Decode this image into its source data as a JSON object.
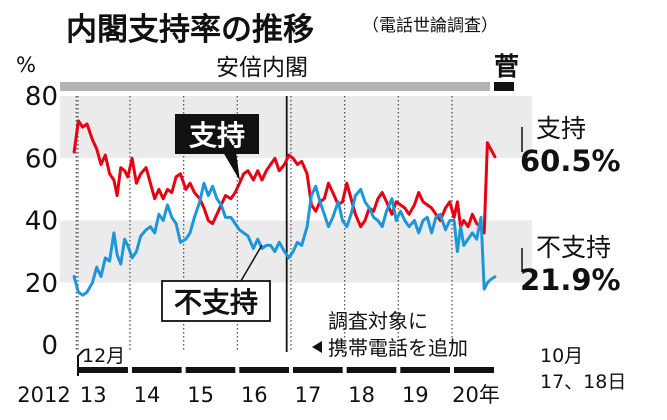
{
  "title": "内閣支持率の推移",
  "subtitle": "（電話世論調査）",
  "colors": {
    "support": "#e60012",
    "nonsupport": "#1f96d8",
    "band_light": "#ebebeb",
    "band_dark": "#b4b4b4",
    "cabinet_bar": "#b4b4b4",
    "ink": "#111111"
  },
  "cabinets": [
    {
      "label": "安倍内閣"
    },
    {
      "label": "菅"
    }
  ],
  "annotation": {
    "line1": "調査対象に",
    "line2": "携帯電話を追加"
  },
  "date_labels": {
    "start_month": "12月",
    "end_month": "10月",
    "end_day": "17、18日"
  },
  "chart_data": {
    "type": "line",
    "y_unit_label": "%",
    "ylim": [
      0,
      80
    ],
    "y_ticks": [
      0,
      20,
      40,
      60,
      80
    ],
    "xlim": [
      2012.92,
      2020.82
    ],
    "x_tick_labels": [
      "2012",
      "13",
      "14",
      "15",
      "16",
      "17",
      "18",
      "19",
      "20年"
    ],
    "grid": false,
    "series": [
      {
        "name": "支持",
        "color_key": "support",
        "last_value_label": "60.5%",
        "x": [
          2012.96,
          2013.04,
          2013.12,
          2013.2,
          2013.3,
          2013.38,
          2013.46,
          2013.54,
          2013.62,
          2013.7,
          2013.76,
          2013.83,
          2013.9,
          2013.96,
          2014.04,
          2014.12,
          2014.2,
          2014.3,
          2014.38,
          2014.46,
          2014.54,
          2014.62,
          2014.7,
          2014.78,
          2014.86,
          2014.94,
          2015.04,
          2015.12,
          2015.2,
          2015.3,
          2015.38,
          2015.46,
          2015.54,
          2015.62,
          2015.7,
          2015.78,
          2015.88,
          2015.96,
          2016.04,
          2016.12,
          2016.2,
          2016.3,
          2016.38,
          2016.46,
          2016.54,
          2016.62,
          2016.7,
          2016.78,
          2016.88,
          2016.96,
          2017.04,
          2017.12,
          2017.2,
          2017.3,
          2017.38,
          2017.46,
          2017.54,
          2017.62,
          2017.7,
          2017.78,
          2017.88,
          2017.96,
          2018.04,
          2018.12,
          2018.2,
          2018.3,
          2018.38,
          2018.46,
          2018.54,
          2018.62,
          2018.7,
          2018.78,
          2018.88,
          2018.96,
          2019.04,
          2019.12,
          2019.2,
          2019.3,
          2019.38,
          2019.46,
          2019.54,
          2019.62,
          2019.7,
          2019.78,
          2019.88,
          2019.96,
          2020.04,
          2020.1,
          2020.16,
          2020.22,
          2020.3,
          2020.38,
          2020.46,
          2020.54,
          2020.6,
          2020.66,
          2020.72,
          2020.8
        ],
        "values": [
          62,
          72,
          70,
          71,
          66,
          63,
          58,
          61,
          55,
          53,
          48,
          57,
          56,
          54,
          60,
          52,
          55,
          57,
          52,
          47,
          50,
          47,
          50,
          49,
          54,
          55,
          50,
          52,
          49,
          47,
          44,
          40,
          39,
          42,
          45,
          48,
          47,
          49,
          52,
          55,
          56,
          53,
          56,
          53,
          56,
          58,
          60,
          56,
          58,
          61,
          60,
          58,
          59,
          55,
          45,
          43,
          46,
          47,
          52,
          49,
          45,
          46,
          52,
          47,
          42,
          38,
          40,
          44,
          43,
          47,
          49,
          46,
          42,
          46,
          45,
          44,
          42,
          45,
          49,
          46,
          45,
          44,
          42,
          40,
          44,
          46,
          41,
          46,
          38,
          40,
          38,
          42,
          39,
          38,
          36,
          65,
          63,
          60.5
        ]
      },
      {
        "name": "不支持",
        "color_key": "nonsupport",
        "last_value_label": "21.9%",
        "x": [
          2012.96,
          2013.04,
          2013.12,
          2013.2,
          2013.3,
          2013.38,
          2013.46,
          2013.54,
          2013.62,
          2013.7,
          2013.76,
          2013.83,
          2013.9,
          2013.96,
          2014.04,
          2014.12,
          2014.2,
          2014.3,
          2014.38,
          2014.46,
          2014.54,
          2014.62,
          2014.7,
          2014.78,
          2014.86,
          2014.94,
          2015.04,
          2015.12,
          2015.2,
          2015.3,
          2015.38,
          2015.46,
          2015.54,
          2015.62,
          2015.7,
          2015.78,
          2015.88,
          2015.96,
          2016.04,
          2016.12,
          2016.2,
          2016.3,
          2016.38,
          2016.46,
          2016.54,
          2016.62,
          2016.7,
          2016.78,
          2016.88,
          2016.96,
          2017.04,
          2017.12,
          2017.2,
          2017.3,
          2017.38,
          2017.46,
          2017.54,
          2017.62,
          2017.7,
          2017.78,
          2017.88,
          2017.96,
          2018.04,
          2018.12,
          2018.2,
          2018.3,
          2018.38,
          2018.46,
          2018.54,
          2018.62,
          2018.7,
          2018.78,
          2018.88,
          2018.96,
          2019.04,
          2019.12,
          2019.2,
          2019.3,
          2019.38,
          2019.46,
          2019.54,
          2019.62,
          2019.7,
          2019.78,
          2019.88,
          2019.96,
          2020.04,
          2020.1,
          2020.16,
          2020.22,
          2020.3,
          2020.38,
          2020.46,
          2020.54,
          2020.6,
          2020.66,
          2020.72,
          2020.8
        ],
        "values": [
          22,
          17,
          16,
          17,
          20,
          25,
          22,
          28,
          27,
          36,
          29,
          26,
          34,
          32,
          28,
          30,
          35,
          37,
          38,
          36,
          42,
          40,
          45,
          41,
          39,
          33,
          34,
          36,
          41,
          46,
          52,
          48,
          51,
          47,
          45,
          41,
          41,
          39,
          37,
          36,
          35,
          31,
          34,
          31,
          32,
          32,
          30,
          33,
          30,
          28,
          30,
          33,
          32,
          38,
          48,
          51,
          46,
          42,
          38,
          41,
          46,
          40,
          38,
          42,
          48,
          50,
          46,
          44,
          41,
          40,
          38,
          43,
          47,
          40,
          43,
          40,
          38,
          40,
          36,
          40,
          41,
          36,
          41,
          42,
          37,
          40,
          40,
          30,
          38,
          32,
          34,
          36,
          34,
          41,
          18,
          20,
          21,
          21.9
        ]
      }
    ],
    "series_callouts": [
      {
        "label": "支持",
        "style": "inverse"
      },
      {
        "label": "不支持",
        "style": "boxed"
      }
    ]
  }
}
